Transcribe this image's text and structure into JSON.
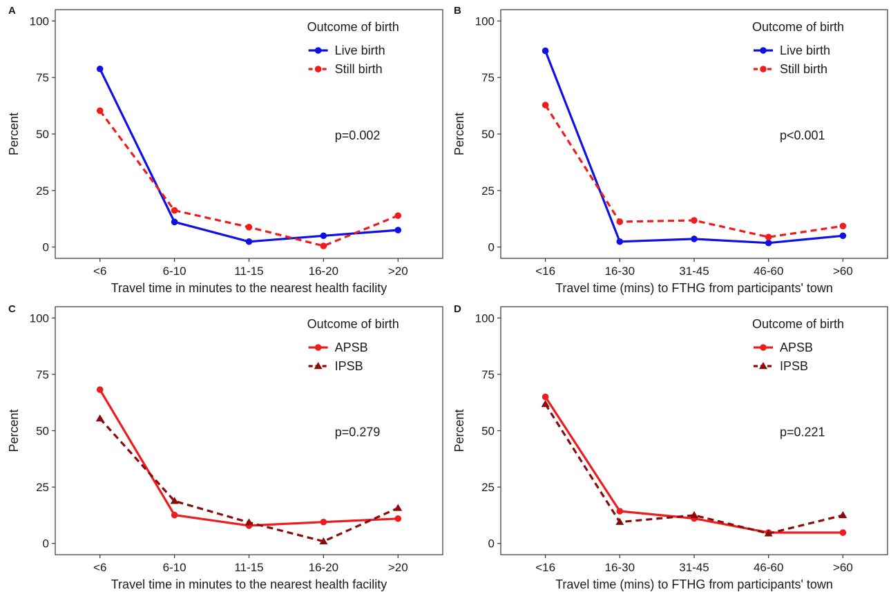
{
  "legend_title": "Outcome of birth",
  "colors": {
    "live": "#1010e6",
    "still": "#ee1c1c",
    "apsb": "#ee1c1c",
    "ipsb": "#8b0a0a"
  },
  "chart_data": [
    {
      "panel": "A",
      "type": "line",
      "categories": [
        "<6",
        "6-10",
        "11-15",
        "16-20",
        ">20"
      ],
      "xlabel": "Travel time in minutes to the nearest health facility",
      "ylabel": "Percent",
      "ylim": [
        0,
        100
      ],
      "yticks": [
        0,
        25,
        50,
        75,
        100
      ],
      "grid": false,
      "legend_placement": "top-right",
      "annotation": "p=0.002",
      "series": [
        {
          "name": "Live birth",
          "color_key": "live",
          "dash": "solid",
          "marker": "circle",
          "values": [
            78.8,
            11.1,
            2.4,
            5.0,
            7.5
          ]
        },
        {
          "name": "Still birth",
          "color_key": "still",
          "dash": "dashed",
          "marker": "circle",
          "values": [
            60.3,
            16.2,
            8.8,
            0.5,
            13.9
          ]
        }
      ]
    },
    {
      "panel": "B",
      "type": "line",
      "categories": [
        "<16",
        "16-30",
        "31-45",
        "46-60",
        ">60"
      ],
      "xlabel": "Travel time (mins) to FTHG from participants' town",
      "ylabel": "Percent",
      "ylim": [
        0,
        100
      ],
      "yticks": [
        0,
        25,
        50,
        75,
        100
      ],
      "grid": false,
      "legend_placement": "top-right",
      "annotation": "p<0.001",
      "series": [
        {
          "name": "Live birth",
          "color_key": "live",
          "dash": "solid",
          "marker": "circle",
          "values": [
            86.8,
            2.4,
            3.6,
            1.8,
            5.0
          ]
        },
        {
          "name": "Still birth",
          "color_key": "still",
          "dash": "dashed",
          "marker": "circle",
          "values": [
            62.8,
            11.2,
            11.8,
            4.4,
            9.3
          ]
        }
      ]
    },
    {
      "panel": "C",
      "type": "line",
      "categories": [
        "<6",
        "6-10",
        "11-15",
        "16-20",
        ">20"
      ],
      "xlabel": "Travel time in minutes to the nearest health facility",
      "ylabel": "Percent",
      "ylim": [
        0,
        100
      ],
      "yticks": [
        0,
        25,
        50,
        75,
        100
      ],
      "grid": false,
      "legend_placement": "top-right",
      "annotation": "p=0.279",
      "series": [
        {
          "name": "APSB",
          "color_key": "apsb",
          "dash": "solid",
          "marker": "circle",
          "values": [
            68.2,
            12.6,
            7.9,
            9.5,
            11.0
          ]
        },
        {
          "name": "IPSB",
          "color_key": "ipsb",
          "dash": "dashed",
          "marker": "triangle",
          "values": [
            55.4,
            18.8,
            9.3,
            0.9,
            15.7
          ]
        }
      ]
    },
    {
      "panel": "D",
      "type": "line",
      "categories": [
        "<16",
        "16-30",
        "31-45",
        "46-60",
        ">60"
      ],
      "xlabel": "Travel time (mins) to FTHG from participants' town",
      "ylabel": "Percent",
      "ylim": [
        0,
        100
      ],
      "yticks": [
        0,
        25,
        50,
        75,
        100
      ],
      "grid": false,
      "legend_placement": "top-right",
      "annotation": "p=0.221",
      "series": [
        {
          "name": "APSB",
          "color_key": "apsb",
          "dash": "solid",
          "marker": "circle",
          "values": [
            65.0,
            14.3,
            11.1,
            4.8,
            4.8
          ]
        },
        {
          "name": "IPSB",
          "color_key": "ipsb",
          "dash": "dashed",
          "marker": "triangle",
          "values": [
            61.8,
            9.5,
            12.5,
            4.4,
            12.5
          ]
        }
      ]
    }
  ]
}
